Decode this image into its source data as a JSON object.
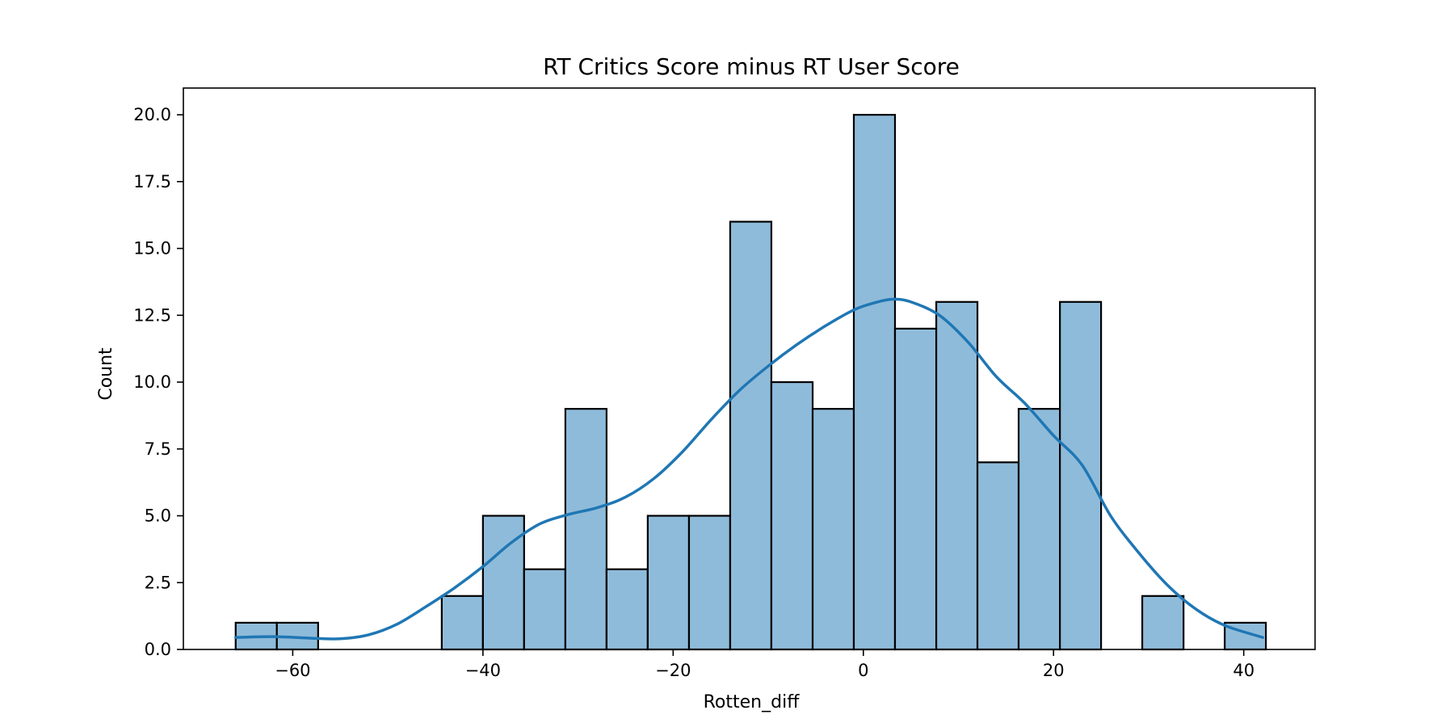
{
  "chart_data": {
    "type": "bar",
    "title": "RT Critics Score minus RT User Score",
    "xlabel": "Rotten_diff",
    "ylabel": "Count",
    "xlim": [
      -71.5,
      47.5
    ],
    "ylim": [
      0,
      21
    ],
    "x_ticks": [
      -60,
      -40,
      -20,
      0,
      20,
      40
    ],
    "x_tick_labels": [
      "−60",
      "−40",
      "−20",
      "0",
      "20",
      "40"
    ],
    "y_ticks": [
      0,
      2.5,
      5,
      7.5,
      10,
      12.5,
      15,
      17.5,
      20
    ],
    "y_tick_labels": [
      "0.0",
      "2.5",
      "5.0",
      "7.5",
      "10.0",
      "12.5",
      "15.0",
      "17.5",
      "20.0"
    ],
    "grid": false,
    "bin_start": -66,
    "bin_width": 4.333,
    "bins": [
      {
        "x0": -66.0,
        "x1": -61.67,
        "count": 1
      },
      {
        "x0": -61.67,
        "x1": -57.33,
        "count": 1
      },
      {
        "x0": -57.33,
        "x1": -53.0,
        "count": 0
      },
      {
        "x0": -53.0,
        "x1": -48.67,
        "count": 0
      },
      {
        "x0": -48.67,
        "x1": -44.33,
        "count": 0
      },
      {
        "x0": -44.33,
        "x1": -40.0,
        "count": 2
      },
      {
        "x0": -40.0,
        "x1": -35.67,
        "count": 5
      },
      {
        "x0": -35.67,
        "x1": -31.33,
        "count": 3
      },
      {
        "x0": -31.33,
        "x1": -27.0,
        "count": 9
      },
      {
        "x0": -27.0,
        "x1": -22.67,
        "count": 3
      },
      {
        "x0": -22.67,
        "x1": -18.33,
        "count": 5
      },
      {
        "x0": -18.33,
        "x1": -14.0,
        "count": 5
      },
      {
        "x0": -14.0,
        "x1": -9.67,
        "count": 16
      },
      {
        "x0": -9.67,
        "x1": -5.33,
        "count": 10
      },
      {
        "x0": -5.33,
        "x1": -1.0,
        "count": 9
      },
      {
        "x0": -1.0,
        "x1": 3.33,
        "count": 20
      },
      {
        "x0": 3.33,
        "x1": 7.67,
        "count": 12
      },
      {
        "x0": 7.67,
        "x1": 12.0,
        "count": 13
      },
      {
        "x0": 12.0,
        "x1": 16.33,
        "count": 7
      },
      {
        "x0": 16.33,
        "x1": 20.67,
        "count": 9
      },
      {
        "x0": 20.67,
        "x1": 25.0,
        "count": 13
      },
      {
        "x0": 25.0,
        "x1": 29.33,
        "count": 0
      },
      {
        "x0": 29.33,
        "x1": 33.67,
        "count": 2
      },
      {
        "x0": 33.67,
        "x1": 38.0,
        "count": 0
      },
      {
        "x0": 38.0,
        "x1": 42.33,
        "count": 1
      }
    ],
    "kde": {
      "x": [
        -66,
        -62,
        -58,
        -55,
        -52,
        -49,
        -46,
        -43,
        -40,
        -37,
        -34,
        -31,
        -28,
        -25,
        -22,
        -19,
        -16,
        -13,
        -10,
        -7,
        -4,
        -1,
        1,
        3,
        5,
        8,
        11,
        14,
        17,
        20,
        23,
        26,
        29,
        32,
        35,
        38,
        42
      ],
      "y": [
        0.45,
        0.48,
        0.42,
        0.4,
        0.55,
        0.95,
        1.6,
        2.3,
        3.1,
        4.0,
        4.7,
        5.05,
        5.3,
        5.7,
        6.4,
        7.4,
        8.6,
        9.7,
        10.6,
        11.4,
        12.1,
        12.7,
        12.95,
        13.1,
        13.0,
        12.5,
        11.5,
        10.2,
        9.2,
        8.0,
        6.9,
        5.0,
        3.6,
        2.4,
        1.5,
        0.9,
        0.45
      ]
    },
    "colors": {
      "bar_fill": "#8fbbda",
      "bar_edge": "#000000",
      "kde_line": "#1f77b4"
    }
  }
}
